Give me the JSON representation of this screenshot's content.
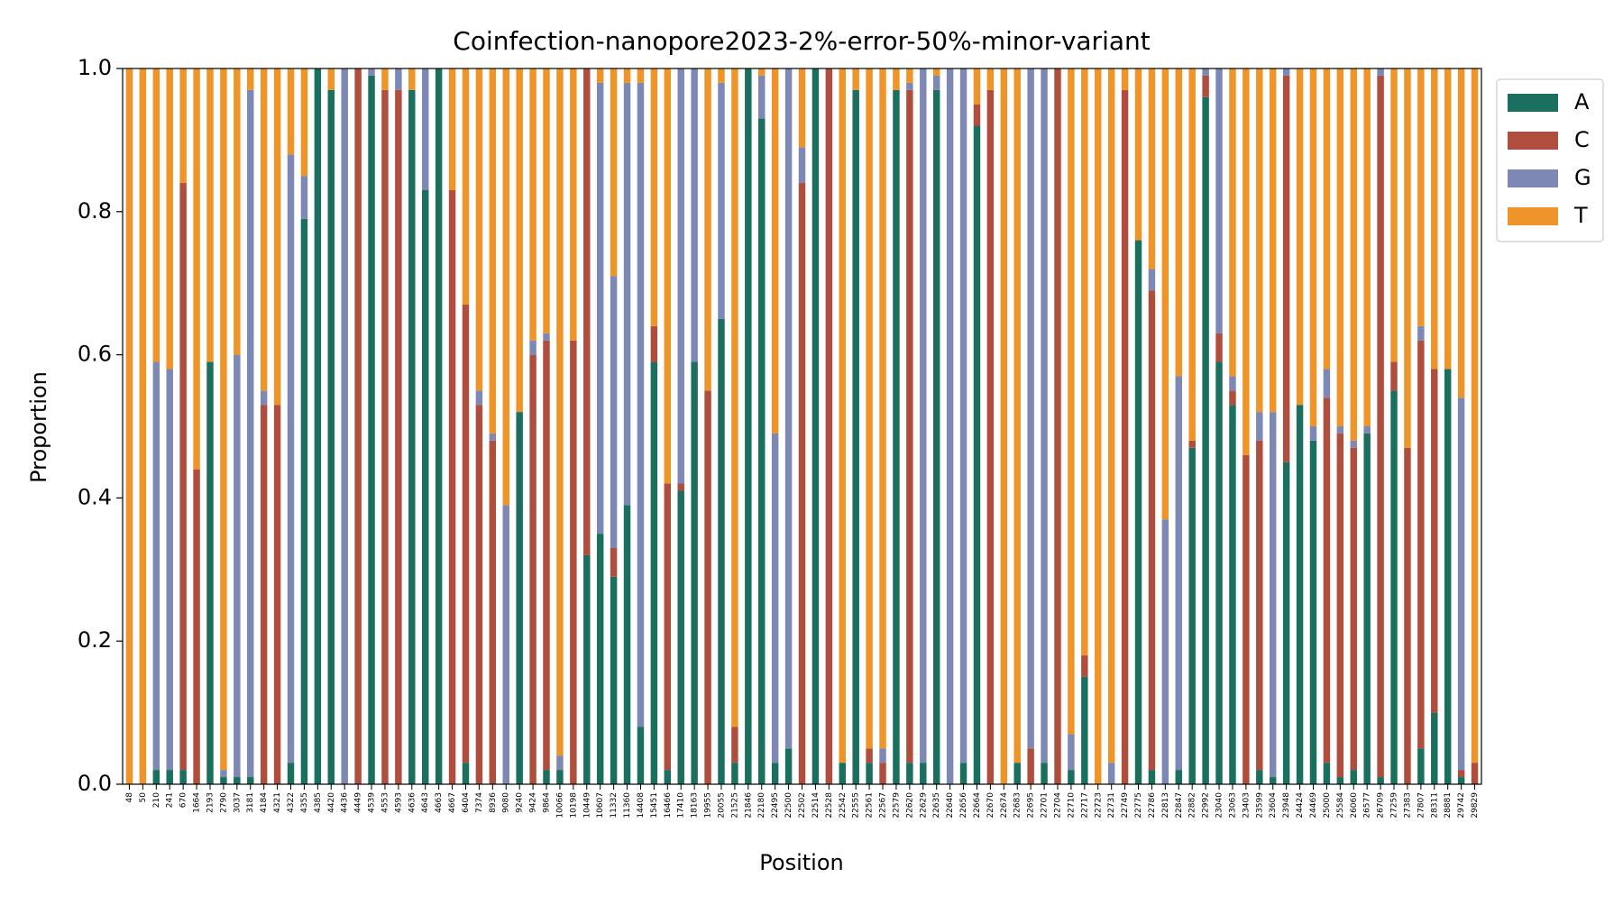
{
  "chart_data": {
    "type": "bar",
    "stacked": true,
    "title": "Coinfection-nanopore2023-2%-error-50%-minor-variant",
    "xlabel": "Position",
    "ylabel": "Proportion",
    "ylim": [
      0,
      1
    ],
    "yticks": [
      {
        "value": 0,
        "label": "0.0"
      },
      0.2,
      0.4,
      0.6,
      0.8,
      {
        "value": 1,
        "label": "1.0"
      }
    ],
    "legend": "outside-right",
    "categories": [
      "48",
      "50",
      "210",
      "241",
      "670",
      "1664",
      "2193",
      "2790",
      "3037",
      "3181",
      "4184",
      "4321",
      "4322",
      "4355",
      "4385",
      "4420",
      "4436",
      "4449",
      "4539",
      "4553",
      "4593",
      "4636",
      "4643",
      "4663",
      "4667",
      "6404",
      "7374",
      "8936",
      "9080",
      "9240",
      "9424",
      "9864",
      "10066",
      "10198",
      "10449",
      "10607",
      "11332",
      "11360",
      "14408",
      "15451",
      "16466",
      "17410",
      "18163",
      "19955",
      "20055",
      "21525",
      "21846",
      "22180",
      "22495",
      "22500",
      "22502",
      "22514",
      "22528",
      "22542",
      "22555",
      "22561",
      "22567",
      "22579",
      "22620",
      "22629",
      "22635",
      "22640",
      "22656",
      "22664",
      "22670",
      "22674",
      "22683",
      "22695",
      "22701",
      "22704",
      "22710",
      "22717",
      "22723",
      "22731",
      "22749",
      "22775",
      "22786",
      "22813",
      "22847",
      "22882",
      "22992",
      "23040",
      "23063",
      "23403",
      "23599",
      "23604",
      "23948",
      "24424",
      "24469",
      "25000",
      "25584",
      "26060",
      "26577",
      "26709",
      "27259",
      "27383",
      "27807",
      "28311",
      "28881",
      "29742",
      "29829"
    ],
    "series": [
      {
        "name": "A",
        "color": "#1b6f5f",
        "values": [
          0,
          0,
          0.02,
          0.02,
          0.02,
          0,
          0.59,
          0.01,
          0.01,
          0.01,
          0,
          0,
          0.03,
          0.79,
          1,
          0.97,
          0,
          0,
          0.99,
          0,
          0,
          0.97,
          0.83,
          1,
          0,
          0.03,
          0,
          0,
          0,
          0.52,
          0,
          0.02,
          0.02,
          0,
          0.32,
          0.35,
          0.29,
          0.39,
          0.08,
          0.59,
          0.02,
          0.41,
          0.59,
          0,
          0.65,
          0.03,
          1,
          0.93,
          0.03,
          0.05,
          0,
          1,
          0,
          0.03,
          0.97,
          0.03,
          0,
          0.97,
          0.03,
          0.03,
          0.97,
          0,
          0.03,
          0.92,
          0,
          0,
          0.03,
          0,
          0.03,
          0,
          0.02,
          0.15,
          0,
          0,
          0,
          0.76,
          0.02,
          0,
          0.02,
          0.47,
          0.96,
          0.59,
          0.53,
          0,
          0.02,
          0.01,
          0.45,
          0.53,
          0.48,
          0.03,
          0.01,
          0.02,
          0.49,
          0.01,
          0.55,
          0,
          0.05,
          0.1,
          0.58,
          0.01,
          0
        ]
      },
      {
        "name": "C",
        "color": "#b04e3e",
        "values": [
          0,
          0,
          0,
          0,
          0.82,
          0.44,
          0,
          0,
          0,
          0,
          0.53,
          0.53,
          0,
          0,
          0,
          0,
          0,
          1,
          0,
          0.97,
          0.97,
          0,
          0,
          0,
          0.83,
          0.64,
          0.53,
          0.48,
          0,
          0,
          0.6,
          0.6,
          0,
          0.62,
          0.68,
          0,
          0.04,
          0,
          0,
          0.05,
          0.4,
          0.01,
          0,
          0.55,
          0,
          0.05,
          0,
          0,
          0,
          0,
          0.84,
          0,
          1,
          0,
          0,
          0.02,
          0.03,
          0,
          0.94,
          0,
          0,
          0,
          0,
          0.03,
          0.97,
          0,
          0,
          0.05,
          0,
          1,
          0,
          0.03,
          0,
          0,
          0.97,
          0,
          0.67,
          0,
          0,
          0.01,
          0.03,
          0.04,
          0.02,
          0.46,
          0.46,
          0,
          0.54,
          0,
          0,
          0.51,
          0.48,
          0.45,
          0,
          0.98,
          0.04,
          0.47,
          0.57,
          0.48,
          0,
          0.01,
          0.03
        ]
      },
      {
        "name": "G",
        "color": "#7d88b5",
        "values": [
          0,
          0,
          0.57,
          0.56,
          0,
          0,
          0,
          0.01,
          0.59,
          0.96,
          0.02,
          0,
          0.85,
          0.06,
          0,
          0,
          1,
          0,
          0.01,
          0,
          0.03,
          0,
          0.17,
          0,
          0,
          0,
          0.02,
          0.01,
          0.39,
          0,
          0.02,
          0.01,
          0.02,
          0,
          0,
          0.63,
          0.38,
          0.59,
          0.9,
          0,
          0,
          0.58,
          0.41,
          0,
          0.33,
          0,
          0,
          0.06,
          0.46,
          0.95,
          0.05,
          0,
          0,
          0,
          0,
          0,
          0.02,
          0,
          0.01,
          0.97,
          0.02,
          1,
          0.97,
          0,
          0,
          0,
          0,
          0.95,
          0.97,
          0,
          0.05,
          0,
          0,
          0.03,
          0,
          0,
          0.03,
          0.37,
          0.55,
          0,
          0.01,
          0.37,
          0.02,
          0,
          0.04,
          0.51,
          0.01,
          0,
          0.02,
          0.04,
          0.01,
          0.01,
          0.01,
          0.01,
          0,
          0,
          0.02,
          0,
          0,
          0.52,
          0
        ]
      },
      {
        "name": "T",
        "color": "#ef9428",
        "values": [
          1,
          1,
          0.41,
          0.42,
          0.16,
          0.56,
          0.41,
          0.98,
          0.4,
          0.03,
          0.45,
          0.47,
          0.12,
          0.15,
          0,
          0.03,
          0,
          0,
          0,
          0.03,
          0,
          0.03,
          0,
          0,
          0.17,
          0.33,
          0.45,
          0.51,
          0.61,
          0.48,
          0.38,
          0.37,
          0.96,
          0.38,
          0,
          0.02,
          0.29,
          0.02,
          0.02,
          0.36,
          0.58,
          0,
          0,
          0.45,
          0.02,
          0.92,
          0,
          0.01,
          0.51,
          0,
          0.11,
          0,
          0,
          0.97,
          0.03,
          0.95,
          0.95,
          0.03,
          0.02,
          0,
          0.01,
          0,
          0,
          0.05,
          0.03,
          1,
          0.97,
          0,
          0,
          0,
          0.93,
          0.82,
          1,
          0.97,
          0.03,
          0.24,
          0.28,
          0.63,
          0.43,
          0.52,
          0,
          0,
          0.43,
          0.54,
          0.48,
          0.48,
          0,
          0.47,
          0.5,
          0.42,
          0.5,
          0.52,
          0.5,
          0,
          0.41,
          0.53,
          0.36,
          0.42,
          0.42,
          0.46,
          0.97
        ]
      }
    ]
  }
}
